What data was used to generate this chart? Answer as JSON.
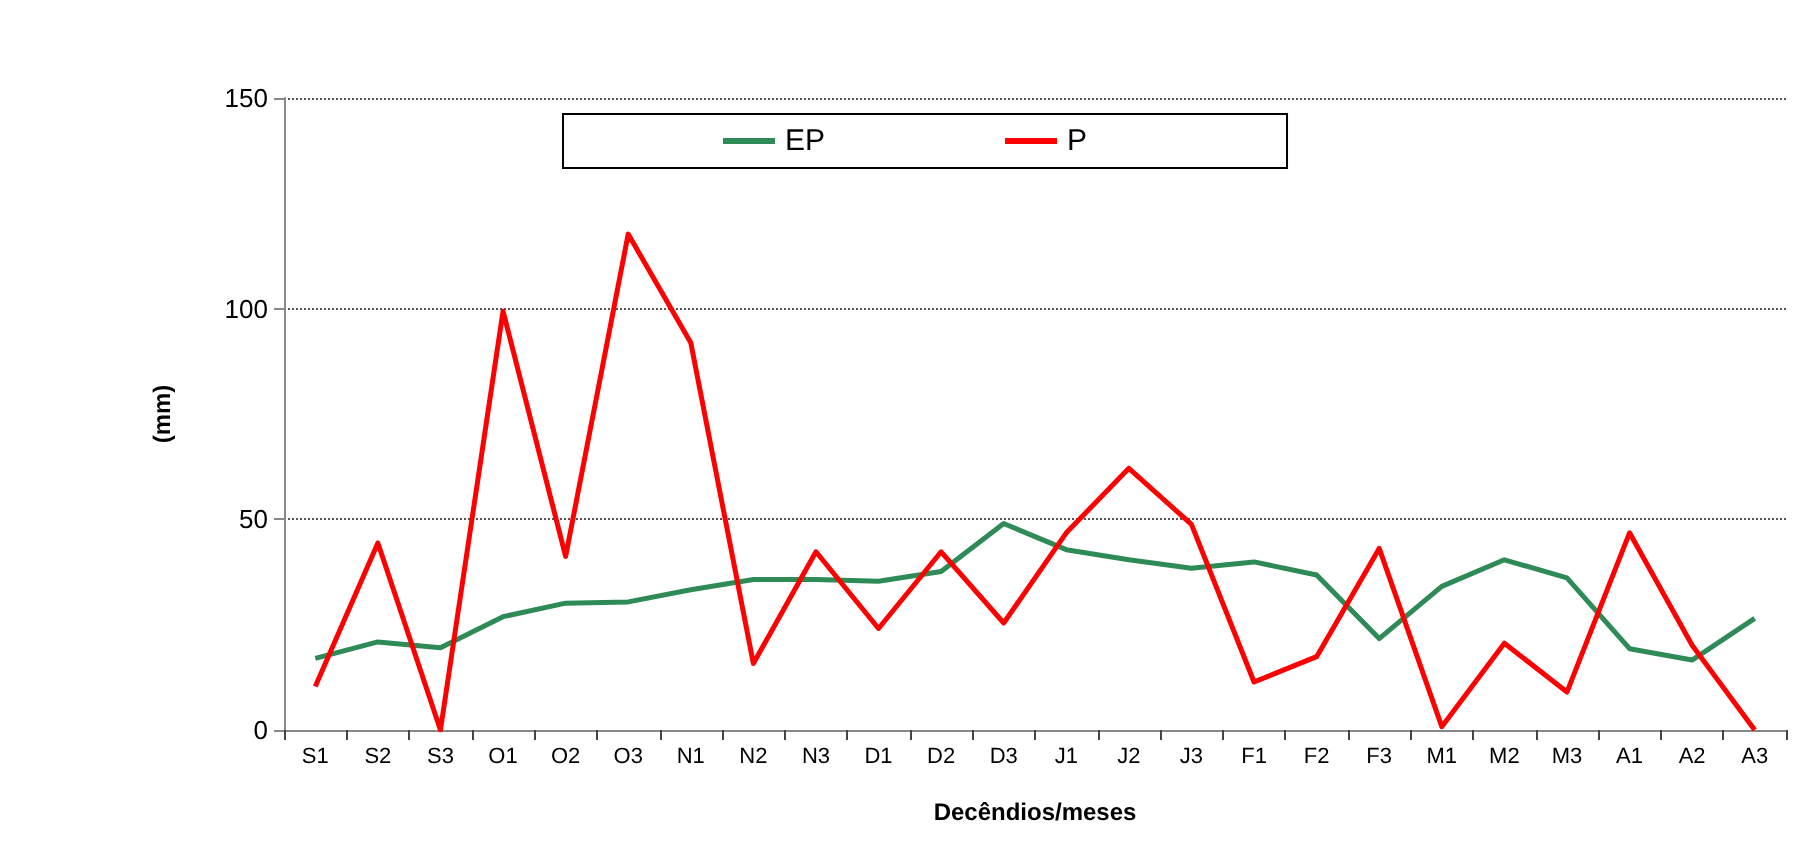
{
  "chart_data": {
    "type": "line",
    "xlabel": "Decêndios/meses",
    "ylabel": "(mm)",
    "categories": [
      "S1",
      "S2",
      "S3",
      "O1",
      "O2",
      "O3",
      "N1",
      "N2",
      "N3",
      "D1",
      "D2",
      "D3",
      "J1",
      "J2",
      "J3",
      "F1",
      "F2",
      "F3",
      "M1",
      "M2",
      "M3",
      "A1",
      "A2",
      "A3"
    ],
    "series": [
      {
        "name": "EP",
        "color": "#2e8b57",
        "values": [
          17,
          20.9,
          19.5,
          26.9,
          30.1,
          30.4,
          33.3,
          35.7,
          35.7,
          35.3,
          37.6,
          49,
          42.8,
          40.4,
          38.4,
          39.9,
          36.8,
          21.7,
          34.1,
          40.4,
          36.1,
          19.3,
          16.6,
          26.5
        ]
      },
      {
        "name": "P",
        "color": "#ff0000",
        "values": [
          10.3,
          44.4,
          0,
          99.4,
          41.2,
          117.7,
          91.9,
          15.8,
          42.3,
          24.1,
          42.3,
          25.4,
          46.8,
          62.1,
          48.8,
          11.4,
          17.4,
          43.1,
          0.8,
          20.6,
          9,
          46.8,
          20.1,
          0
        ]
      }
    ],
    "ylim": [
      0,
      150
    ],
    "yticks": [
      0,
      50,
      100,
      150
    ],
    "grid": "y",
    "legend": "top",
    "marker": "none",
    "line_style": "solid"
  }
}
